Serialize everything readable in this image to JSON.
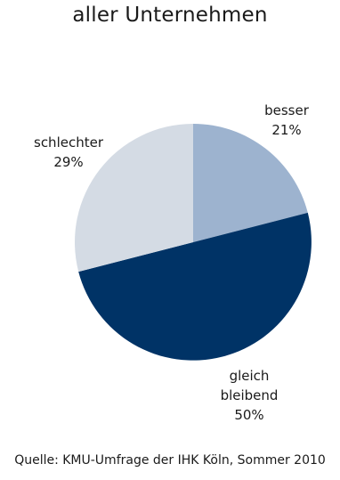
{
  "chart_data": {
    "type": "pie",
    "title": "aller Unternehmen",
    "categories": [
      "besser",
      "gleich bleibend",
      "schlechter"
    ],
    "values": [
      21,
      50,
      29
    ],
    "value_labels": [
      "21%",
      "50%",
      "29%"
    ],
    "colors": [
      "#9db3cf",
      "#003366",
      "#d4dbe4"
    ],
    "start_angle_deg": 0,
    "direction": "clockwise"
  },
  "labels": {
    "besser": {
      "name": "besser",
      "value": "21%"
    },
    "gleich": {
      "name_line1": "gleich",
      "name_line2": "bleibend",
      "value": "50%"
    },
    "schlechter": {
      "name": "schlechter",
      "value": "29%"
    }
  },
  "source": "Quelle: KMU-Umfrage der IHK Köln, Sommer 2010"
}
